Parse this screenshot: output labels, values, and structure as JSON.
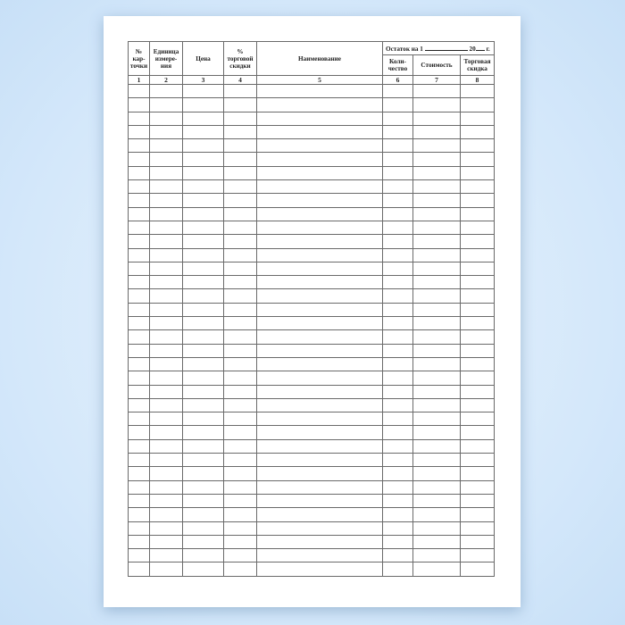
{
  "headers": {
    "col1": "№ кар-точки",
    "col2": "Единица измере-ния",
    "col3": "Цена",
    "col4": "% торговой скидки",
    "col5": "Наименование",
    "balance_prefix": "Остаток на 1",
    "balance_year": "20",
    "balance_suffix": "г.",
    "col6": "Коли-чество",
    "col7": "Стоимость",
    "col8": "Торговая скидка"
  },
  "column_numbers": [
    "1",
    "2",
    "3",
    "4",
    "5",
    "6",
    "7",
    "8"
  ],
  "empty_rows": 36
}
